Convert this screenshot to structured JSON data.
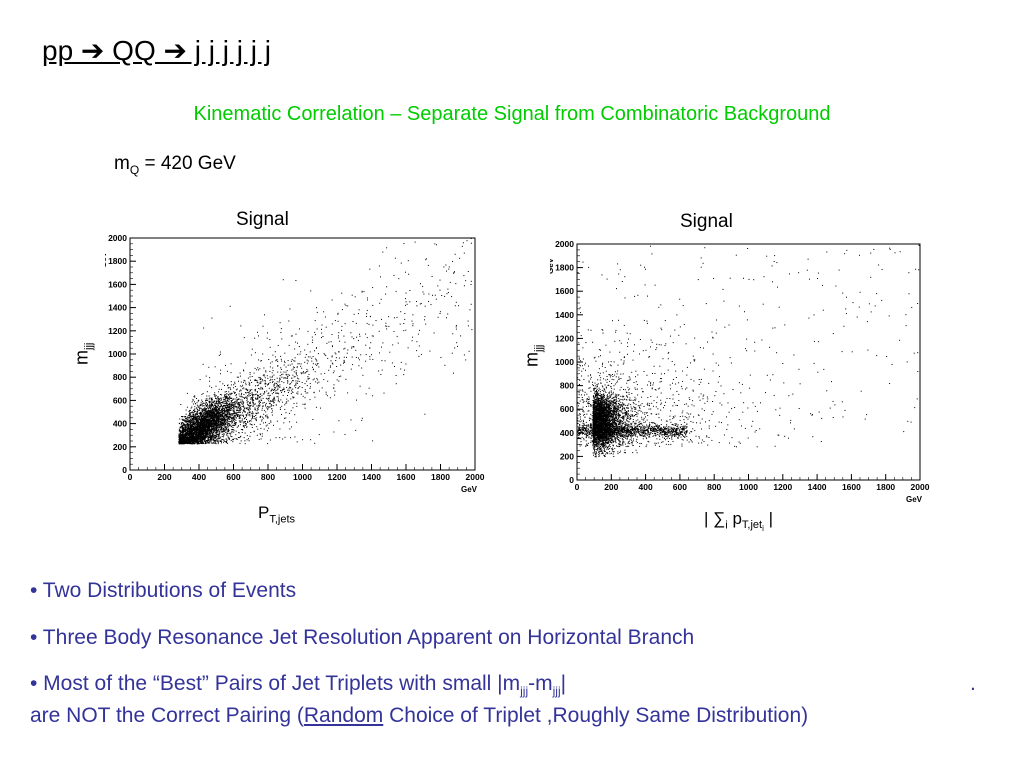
{
  "title": "pp ➔ QQ ➔ j j j j j j",
  "subtitle": "Kinematic Correlation – Separate Signal from Combinatoric Background",
  "mass": {
    "symbol": "m",
    "sub": "Q",
    "value": " = 420 GeV"
  },
  "chart_data": [
    {
      "type": "scatter",
      "title": "Signal",
      "xlabel": "P",
      "xlabel_sub": "T,jets",
      "ylabel": "m",
      "ylabel_sub": "jjj",
      "xunit": "GeV",
      "yunit": "GeV",
      "xlim": [
        0,
        2000
      ],
      "ylim": [
        0,
        2000
      ],
      "xticks": [
        "0",
        "200",
        "400",
        "600",
        "800",
        "1000",
        "1200",
        "1400",
        "1600",
        "1800",
        "2000"
      ],
      "yticks": [
        "0",
        "200",
        "400",
        "600",
        "800",
        "1000",
        "1200",
        "1400",
        "1600",
        "1800",
        "2000"
      ],
      "distribution": {
        "core": {
          "x": 420,
          "y": 380
        },
        "trend": [
          [
            300,
            300
          ],
          [
            600,
            550
          ],
          [
            900,
            800
          ],
          [
            1400,
            1150
          ],
          [
            2000,
            1500
          ]
        ],
        "x_min": 280,
        "y_min": 230
      }
    },
    {
      "type": "scatter",
      "title": "Signal",
      "xlabel": "| ∑",
      "xlabel_sub": "i",
      "xlabel_mid": " p",
      "xlabel_sub2": "T,jet",
      "xlabel_sub3": "i",
      "xlabel_end": " |",
      "ylabel": "m",
      "ylabel_sub": "jjj",
      "xunit": "GeV",
      "yunit": "GeV",
      "xlim": [
        0,
        2000
      ],
      "ylim": [
        0,
        2000
      ],
      "xticks": [
        "0",
        "200",
        "400",
        "600",
        "800",
        "1000",
        "1200",
        "1400",
        "1600",
        "1800",
        "2000"
      ],
      "yticks": [
        "0",
        "200",
        "400",
        "600",
        "800",
        "1000",
        "1200",
        "1400",
        "1600",
        "1800",
        "2000"
      ],
      "distribution": {
        "core": {
          "x": 150,
          "y": 450
        },
        "horizontal_branch_y": 420,
        "x_min": 0,
        "y_min": 200
      }
    }
  ],
  "bullets": {
    "b1": "• Two Distributions of Events",
    "b2": "• Three Body Resonance Jet Resolution Apparent on Horizontal Branch",
    "b3_pre": "• Most of the “Best” Pairs of Jet Triplets with small |m",
    "b3_sub1": "jjj",
    "b3_mid": "-m",
    "b3_sub2": "jjj",
    "b3_end": "|",
    "b3_dot": ".",
    "b4_pre": "are NOT the Correct Pairing   (",
    "b4_link": "Random",
    "b4_post": " Choice of Triplet ,Roughly Same Distribution)"
  }
}
